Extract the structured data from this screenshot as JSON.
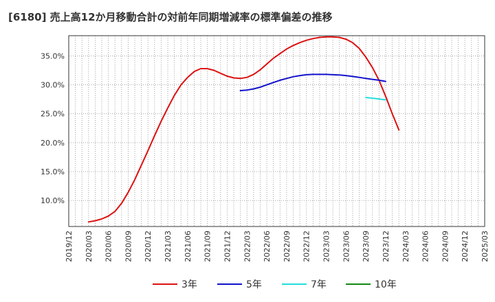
{
  "chart_data": {
    "type": "line",
    "title": "[6180]  売上高12か月移動合計の対前年同期増減率の標準偏差の推移",
    "xlabel": "",
    "ylabel": "",
    "grid": true,
    "legend_position": "bottom",
    "ylim": [
      5.5,
      38.5
    ],
    "y_ticks": [
      10,
      15,
      20,
      25,
      30,
      35
    ],
    "y_tick_labels": [
      "10.0%",
      "15.0%",
      "20.0%",
      "25.0%",
      "30.0%",
      "35.0%"
    ],
    "x_tick_labels": [
      "2019/12",
      "2020/03",
      "2020/06",
      "2020/09",
      "2020/12",
      "2021/03",
      "2021/06",
      "2021/09",
      "2021/12",
      "2022/03",
      "2022/06",
      "2022/09",
      "2022/12",
      "2023/03",
      "2023/06",
      "2023/09",
      "2023/12",
      "2024/03",
      "2024/06",
      "2024/09",
      "2024/12",
      "2025/03"
    ],
    "series": [
      {
        "name": "3年",
        "color": "#dd1111",
        "start_index": 3,
        "values": [
          6.3,
          6.5,
          6.8,
          7.3,
          8.1,
          9.5,
          11.4,
          13.6,
          16.1,
          18.6,
          21.2,
          23.7,
          26.0,
          28.2,
          30.0,
          31.3,
          32.3,
          32.8,
          32.8,
          32.5,
          32.0,
          31.5,
          31.2,
          31.1,
          31.3,
          31.8,
          32.6,
          33.6,
          34.6,
          35.4,
          36.2,
          36.8,
          37.3,
          37.7,
          38.0,
          38.2,
          38.3,
          38.3,
          38.2,
          37.9,
          37.3,
          36.3,
          34.8,
          33.0,
          30.8,
          28.0,
          25.0,
          22.2
        ]
      },
      {
        "name": "5年",
        "color": "#1111cc",
        "start_index": 26,
        "values": [
          29.0,
          29.1,
          29.3,
          29.6,
          30.0,
          30.4,
          30.8,
          31.1,
          31.4,
          31.6,
          31.75,
          31.8,
          31.8,
          31.8,
          31.75,
          31.7,
          31.6,
          31.45,
          31.3,
          31.1,
          30.95,
          30.8,
          30.6
        ]
      },
      {
        "name": "7年",
        "color": "#22dddd",
        "start_index": 45,
        "values": [
          27.8,
          27.7,
          27.55,
          27.4
        ]
      },
      {
        "name": "10年",
        "color": "#118811",
        "start_index": 0,
        "values": []
      }
    ]
  }
}
